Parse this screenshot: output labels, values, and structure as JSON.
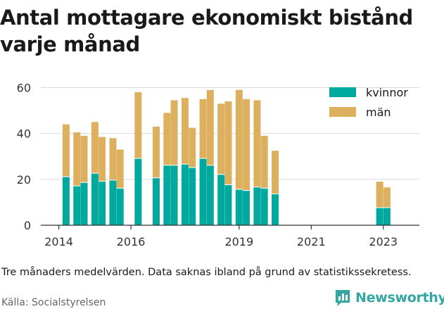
{
  "title_lines": [
    "Antal mottagare ekonomiskt bistånd",
    "varje månad"
  ],
  "footnote": "Tre månaders medelvärden. Data saknas ibland på grund av statistikssekretess.",
  "source": "Källa: Socialstyrelsen",
  "brand": "Newsworthy",
  "colors": {
    "kvinnor": "#00a99d",
    "man": "#dcb05f",
    "axis": "#333333",
    "grid": "#d9d9d9"
  },
  "chart_data": {
    "type": "bar",
    "stacked": true,
    "title": "Antal mottagare ekonomiskt bistånd varje månad",
    "xlim": [
      2013.5,
      2024.0
    ],
    "ylim": [
      0,
      62
    ],
    "yticks": [
      0,
      20,
      40,
      60
    ],
    "xticks": [
      2014,
      2016,
      2019,
      2021,
      2023
    ],
    "grid": "horizontal",
    "legend": "top-right",
    "x": [
      2014.2,
      2014.5,
      2014.7,
      2015.0,
      2015.2,
      2015.5,
      2015.7,
      2016.2,
      2016.7,
      2017.0,
      2017.2,
      2017.5,
      2017.7,
      2018.0,
      2018.2,
      2018.5,
      2018.7,
      2019.0,
      2019.2,
      2019.5,
      2019.7,
      2020.0,
      2022.9,
      2023.1
    ],
    "series": [
      {
        "name": "kvinnor",
        "values": [
          21,
          17,
          18.5,
          22.5,
          19,
          19.5,
          16,
          29,
          20.5,
          26,
          26,
          26.5,
          25,
          29,
          26,
          22,
          17.5,
          15.5,
          15,
          16.5,
          16,
          13.5,
          7.5,
          7.5
        ]
      },
      {
        "name": "män",
        "values": [
          23,
          23.5,
          20.5,
          22.5,
          19.5,
          18.5,
          17,
          29,
          22.5,
          23,
          28.5,
          29,
          17.5,
          26,
          33,
          31,
          36.5,
          43.5,
          40,
          38,
          23,
          19,
          11.5,
          9
        ]
      }
    ]
  }
}
